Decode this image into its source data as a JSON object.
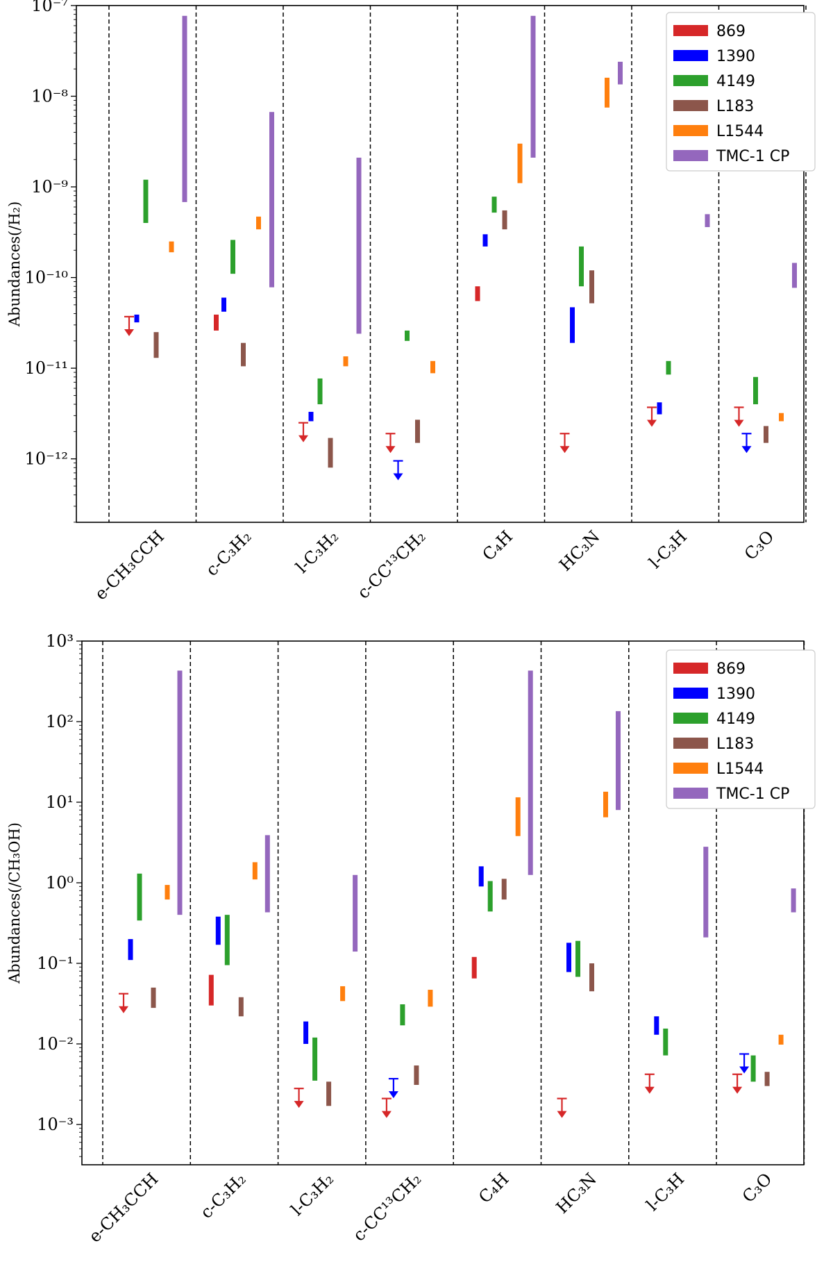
{
  "chart_data": [
    {
      "type": "range",
      "ylabel": "Abundances(/H₂)",
      "yscale": "log",
      "ylim_exponents": [
        -12.7,
        -7
      ],
      "y_ticks": [
        {
          "exp": -12,
          "label": "10⁻¹²"
        },
        {
          "exp": -11,
          "label": "10⁻¹¹"
        },
        {
          "exp": -10,
          "label": "10⁻¹⁰"
        },
        {
          "exp": -9,
          "label": "10⁻⁹"
        },
        {
          "exp": -8,
          "label": "10⁻⁸"
        },
        {
          "exp": -7,
          "label": "10⁻⁷"
        }
      ],
      "categories": [
        "e-CH₃CCH",
        "c-C₃H₂",
        "l-C₃H₂",
        "c-CC¹³CH₂",
        "C₄H",
        "HC₃N",
        "l-C₃H",
        "C₃O"
      ],
      "legend": [
        {
          "name": "869",
          "color": "#d62728"
        },
        {
          "name": "1390",
          "color": "#0000ff"
        },
        {
          "name": "4149",
          "color": "#2ca02c"
        },
        {
          "name": "L183",
          "color": "#8c564b"
        },
        {
          "name": "L1544",
          "color": "#ff7f0e"
        },
        {
          "name": "TMC-1 CP",
          "color": "#9467bd"
        }
      ],
      "legend_position": "top-right",
      "series": [
        {
          "name": "869",
          "ranges": [
            {
              "type": "upper_limit",
              "value": 3.7e-11
            },
            {
              "type": "range",
              "low": 2.6e-11,
              "high": 3.9e-11
            },
            {
              "type": "upper_limit",
              "value": 2.5e-12
            },
            {
              "type": "upper_limit",
              "value": 1.9e-12
            },
            {
              "type": "range",
              "low": 5.5e-11,
              "high": 8e-11
            },
            {
              "type": "upper_limit",
              "value": 1.9e-12
            },
            {
              "type": "upper_limit",
              "value": 3.7e-12
            },
            {
              "type": "upper_limit",
              "value": 3.7e-12
            }
          ]
        },
        {
          "name": "1390",
          "ranges": [
            {
              "type": "range",
              "low": 3.2e-11,
              "high": 3.9e-11
            },
            {
              "type": "range",
              "low": 4.2e-11,
              "high": 6e-11
            },
            {
              "type": "range",
              "low": 2.6e-12,
              "high": 3.3e-12
            },
            {
              "type": "upper_limit",
              "value": 9.5e-13
            },
            {
              "type": "range",
              "low": 2.2e-10,
              "high": 3e-10
            },
            {
              "type": "range",
              "low": 1.9e-11,
              "high": 4.7e-11
            },
            {
              "type": "range",
              "low": 3.1e-12,
              "high": 4.2e-12
            },
            {
              "type": "upper_limit",
              "value": 1.9e-12
            }
          ]
        },
        {
          "name": "4149",
          "ranges": [
            {
              "type": "range",
              "low": 4e-10,
              "high": 1.2e-09
            },
            {
              "type": "range",
              "low": 1.1e-10,
              "high": 2.6e-10
            },
            {
              "type": "range",
              "low": 4e-12,
              "high": 7.7e-12
            },
            {
              "type": "range",
              "low": 2e-11,
              "high": 2.6e-11
            },
            {
              "type": "range",
              "low": 5.2e-10,
              "high": 7.8e-10
            },
            {
              "type": "range",
              "low": 8e-11,
              "high": 2.2e-10
            },
            {
              "type": "range",
              "low": 8.5e-12,
              "high": 1.2e-11
            },
            {
              "type": "range",
              "low": 4e-12,
              "high": 8e-12
            }
          ]
        },
        {
          "name": "L183",
          "ranges": [
            {
              "type": "range",
              "low": 1.3e-11,
              "high": 2.5e-11
            },
            {
              "type": "range",
              "low": 1.05e-11,
              "high": 1.9e-11
            },
            {
              "type": "range",
              "low": 8e-13,
              "high": 1.7e-12
            },
            {
              "type": "range",
              "low": 1.5e-12,
              "high": 2.7e-12
            },
            {
              "type": "range",
              "low": 3.4e-10,
              "high": 5.5e-10
            },
            {
              "type": "range",
              "low": 5.2e-11,
              "high": 1.2e-10
            },
            null,
            {
              "type": "range",
              "low": 1.5e-12,
              "high": 2.3e-12
            }
          ]
        },
        {
          "name": "L1544",
          "ranges": [
            {
              "type": "range",
              "low": 1.9e-10,
              "high": 2.5e-10
            },
            {
              "type": "range",
              "low": 3.4e-10,
              "high": 4.7e-10
            },
            {
              "type": "range",
              "low": 1.05e-11,
              "high": 1.35e-11
            },
            {
              "type": "range",
              "low": 8.8e-12,
              "high": 1.2e-11
            },
            {
              "type": "range",
              "low": 1.1e-09,
              "high": 3e-09
            },
            {
              "type": "range",
              "low": 7.5e-09,
              "high": 1.6e-08
            },
            null,
            {
              "type": "range",
              "low": 2.6e-12,
              "high": 3.2e-12
            }
          ]
        },
        {
          "name": "TMC-1 CP",
          "ranges": [
            {
              "type": "range",
              "low": 6.8e-10,
              "high": 7.7e-08
            },
            {
              "type": "range",
              "low": 7.8e-11,
              "high": 6.7e-09
            },
            {
              "type": "range",
              "low": 2.4e-11,
              "high": 2.1e-09
            },
            null,
            {
              "type": "range",
              "low": 2.1e-09,
              "high": 7.7e-08
            },
            {
              "type": "range",
              "low": 1.35e-08,
              "high": 2.4e-08
            },
            {
              "type": "range",
              "low": 3.6e-10,
              "high": 5e-10
            },
            {
              "type": "range",
              "low": 7.7e-11,
              "high": 1.45e-10
            }
          ]
        }
      ]
    },
    {
      "type": "range",
      "ylabel": "Abundances(/CH₃OH)",
      "yscale": "log",
      "ylim_exponents": [
        -3.5,
        3
      ],
      "y_ticks": [
        {
          "exp": -3,
          "label": "10⁻³"
        },
        {
          "exp": -2,
          "label": "10⁻²"
        },
        {
          "exp": -1,
          "label": "10⁻¹"
        },
        {
          "exp": 0,
          "label": "10⁰"
        },
        {
          "exp": 1,
          "label": "10¹"
        },
        {
          "exp": 2,
          "label": "10²"
        },
        {
          "exp": 3,
          "label": "10³"
        }
      ],
      "categories": [
        "e-CH₃CCH",
        "c-C₃H₂",
        "l-C₃H₂",
        "c-CC¹³CH₂",
        "C₄H",
        "HC₃N",
        "l-C₃H",
        "C₃O"
      ],
      "legend": [
        {
          "name": "869",
          "color": "#d62728"
        },
        {
          "name": "1390",
          "color": "#0000ff"
        },
        {
          "name": "4149",
          "color": "#2ca02c"
        },
        {
          "name": "L183",
          "color": "#8c564b"
        },
        {
          "name": "L1544",
          "color": "#ff7f0e"
        },
        {
          "name": "TMC-1 CP",
          "color": "#9467bd"
        }
      ],
      "legend_position": "top-right",
      "series": [
        {
          "name": "869",
          "ranges": [
            {
              "type": "upper_limit",
              "value": 0.042
            },
            {
              "type": "range",
              "low": 0.03,
              "high": 0.072
            },
            {
              "type": "upper_limit",
              "value": 0.0028
            },
            {
              "type": "upper_limit",
              "value": 0.0021
            },
            {
              "type": "range",
              "low": 0.065,
              "high": 0.12
            },
            {
              "type": "upper_limit",
              "value": 0.0021
            },
            {
              "type": "upper_limit",
              "value": 0.0042
            },
            {
              "type": "upper_limit",
              "value": 0.0042
            }
          ]
        },
        {
          "name": "1390",
          "ranges": [
            {
              "type": "range",
              "low": 0.11,
              "high": 0.2
            },
            {
              "type": "range",
              "low": 0.17,
              "high": 0.38
            },
            {
              "type": "range",
              "low": 0.01,
              "high": 0.019
            },
            {
              "type": "upper_limit",
              "value": 0.0037
            },
            {
              "type": "range",
              "low": 0.9,
              "high": 1.6
            },
            {
              "type": "range",
              "low": 0.078,
              "high": 0.18
            },
            {
              "type": "range",
              "low": 0.013,
              "high": 0.022
            },
            {
              "type": "upper_limit",
              "value": 0.0075
            }
          ]
        },
        {
          "name": "4149",
          "ranges": [
            {
              "type": "range",
              "low": 0.34,
              "high": 1.3
            },
            {
              "type": "range",
              "low": 0.095,
              "high": 0.4
            },
            {
              "type": "range",
              "low": 0.0035,
              "high": 0.012
            },
            {
              "type": "range",
              "low": 0.017,
              "high": 0.031
            },
            {
              "type": "range",
              "low": 0.44,
              "high": 1.05
            },
            {
              "type": "range",
              "low": 0.068,
              "high": 0.19
            },
            {
              "type": "range",
              "low": 0.0072,
              "high": 0.0155
            },
            {
              "type": "range",
              "low": 0.0034,
              "high": 0.0072
            }
          ]
        },
        {
          "name": "L183",
          "ranges": [
            {
              "type": "range",
              "low": 0.028,
              "high": 0.05
            },
            {
              "type": "range",
              "low": 0.022,
              "high": 0.038
            },
            {
              "type": "range",
              "low": 0.0017,
              "high": 0.0034
            },
            {
              "type": "range",
              "low": 0.0031,
              "high": 0.0054
            },
            {
              "type": "range",
              "low": 0.62,
              "high": 1.12
            },
            {
              "type": "range",
              "low": 0.045,
              "high": 0.1
            },
            null,
            {
              "type": "range",
              "low": 0.003,
              "high": 0.0045
            }
          ]
        },
        {
          "name": "L1544",
          "ranges": [
            {
              "type": "range",
              "low": 0.62,
              "high": 0.94
            },
            {
              "type": "range",
              "low": 1.1,
              "high": 1.8
            },
            {
              "type": "range",
              "low": 0.034,
              "high": 0.052
            },
            {
              "type": "range",
              "low": 0.029,
              "high": 0.047
            },
            {
              "type": "range",
              "low": 3.8,
              "high": 11.5
            },
            {
              "type": "range",
              "low": 6.5,
              "high": 13.5
            },
            null,
            {
              "type": "range",
              "low": 0.0098,
              "high": 0.013
            }
          ]
        },
        {
          "name": "TMC-1 CP",
          "ranges": [
            {
              "type": "range",
              "low": 0.4,
              "high": 430
            },
            {
              "type": "range",
              "low": 0.43,
              "high": 3.9
            },
            {
              "type": "range",
              "low": 0.14,
              "high": 1.25
            },
            null,
            {
              "type": "range",
              "low": 1.25,
              "high": 430
            },
            {
              "type": "range",
              "low": 8,
              "high": 135
            },
            {
              "type": "range",
              "low": 0.21,
              "high": 2.8
            },
            {
              "type": "range",
              "low": 0.43,
              "high": 0.85
            }
          ]
        }
      ]
    }
  ]
}
